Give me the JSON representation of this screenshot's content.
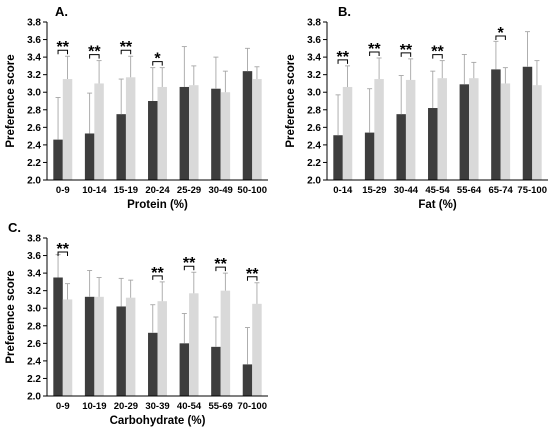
{
  "colors": {
    "dark_bar": "#3d3d3d",
    "light_bar": "#d9d9d9",
    "error_bar": "#a6a6a6",
    "axis": "#000000",
    "text": "#000000"
  },
  "chart_data": [
    {
      "panel_label": "A.",
      "type": "bar",
      "ylabel": "Preference score",
      "xlabel": "Protein  (%)",
      "ylim": [
        2.0,
        3.8
      ],
      "y_ticks": [
        "2.0",
        "2.2",
        "2.4",
        "2.6",
        "2.8",
        "3.0",
        "3.2",
        "3.4",
        "3.6",
        "3.8"
      ],
      "categories": [
        "0-9",
        "10-14",
        "15-19",
        "20-24",
        "25-29",
        "30-49",
        "50-100"
      ],
      "series": [
        {
          "values": [
            2.46,
            2.53,
            2.75,
            2.9,
            3.06,
            3.04,
            3.24
          ],
          "errors": [
            0.48,
            0.46,
            0.4,
            0.38,
            0.46,
            0.36,
            0.26
          ],
          "color": "dark"
        },
        {
          "values": [
            3.15,
            3.1,
            3.17,
            3.06,
            3.08,
            3.0,
            3.15
          ],
          "errors": [
            0.26,
            0.26,
            0.24,
            0.22,
            0.22,
            0.24,
            0.14
          ],
          "color": "light"
        }
      ],
      "significance": [
        "**",
        "**",
        "**",
        "*",
        "",
        "",
        ""
      ],
      "grid": false
    },
    {
      "panel_label": "B.",
      "type": "bar",
      "ylabel": "Preference score",
      "xlabel": "Fat  (%)",
      "ylim": [
        2.0,
        3.8
      ],
      "y_ticks": [
        "2.0",
        "2.2",
        "2.4",
        "2.6",
        "2.8",
        "3.0",
        "3.2",
        "3.4",
        "3.6",
        "3.8"
      ],
      "categories": [
        "0-14",
        "15-29",
        "30-44",
        "45-54",
        "55-64",
        "65-74",
        "75-100"
      ],
      "series": [
        {
          "values": [
            2.51,
            2.54,
            2.75,
            2.82,
            3.09,
            3.26,
            3.29
          ],
          "errors": [
            0.46,
            0.5,
            0.44,
            0.42,
            0.34,
            0.32,
            0.4
          ],
          "color": "dark"
        },
        {
          "values": [
            3.06,
            3.15,
            3.14,
            3.16,
            3.16,
            3.1,
            3.08
          ],
          "errors": [
            0.24,
            0.24,
            0.24,
            0.2,
            0.18,
            0.18,
            0.28
          ],
          "color": "light"
        }
      ],
      "significance": [
        "**",
        "**",
        "**",
        "**",
        "",
        "*",
        ""
      ],
      "grid": false
    },
    {
      "panel_label": "C.",
      "type": "bar",
      "ylabel": "Preference score",
      "xlabel": "Carbohydrate  (%)",
      "ylim": [
        2.0,
        3.8
      ],
      "y_ticks": [
        "2.0",
        "2.2",
        "2.4",
        "2.6",
        "2.8",
        "3.0",
        "3.2",
        "3.4",
        "3.6",
        "3.8"
      ],
      "categories": [
        "0-9",
        "10-19",
        "20-29",
        "30-39",
        "40-54",
        "55-69",
        "70-100"
      ],
      "series": [
        {
          "values": [
            3.35,
            3.13,
            3.02,
            2.72,
            2.6,
            2.56,
            2.36
          ],
          "errors": [
            0.26,
            0.3,
            0.32,
            0.32,
            0.34,
            0.34,
            0.42
          ],
          "color": "dark"
        },
        {
          "values": [
            3.1,
            3.13,
            3.12,
            3.08,
            3.17,
            3.2,
            3.05
          ],
          "errors": [
            0.18,
            0.22,
            0.2,
            0.22,
            0.24,
            0.2,
            0.24
          ],
          "color": "light"
        }
      ],
      "significance": [
        "**",
        "",
        "",
        "**",
        "**",
        "**",
        "**"
      ],
      "grid": false
    }
  ]
}
